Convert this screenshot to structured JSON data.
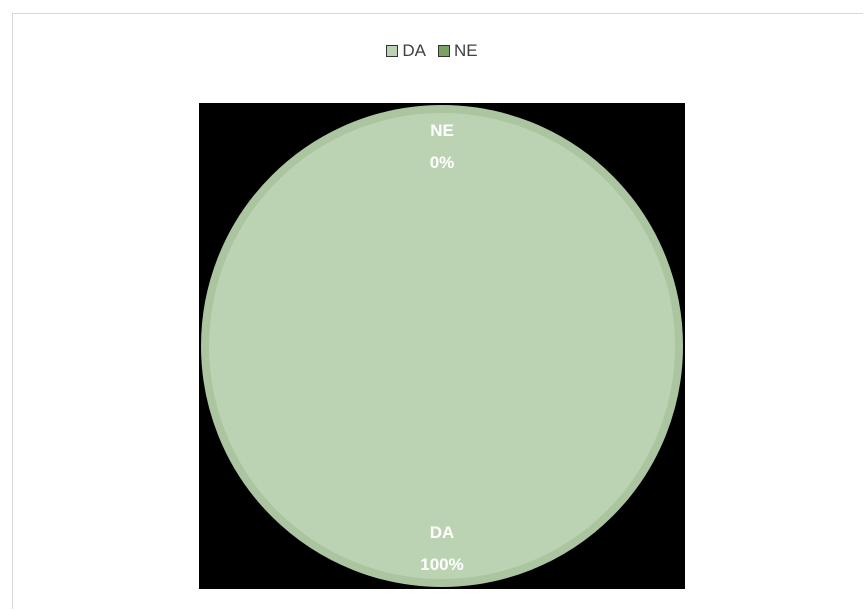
{
  "chart_data": {
    "type": "pie",
    "categories": [
      "DA",
      "NE"
    ],
    "values": [
      100,
      0
    ],
    "colors": [
      "#bcd3b3",
      "#7aa363"
    ],
    "legend": {
      "position": "top",
      "entries": [
        "DA",
        "NE"
      ]
    },
    "data_labels": [
      {
        "category": "DA",
        "text": "100%"
      },
      {
        "category": "NE",
        "text": "0%"
      }
    ],
    "background": "#000000",
    "pie_rim_color": "#aac59f"
  }
}
